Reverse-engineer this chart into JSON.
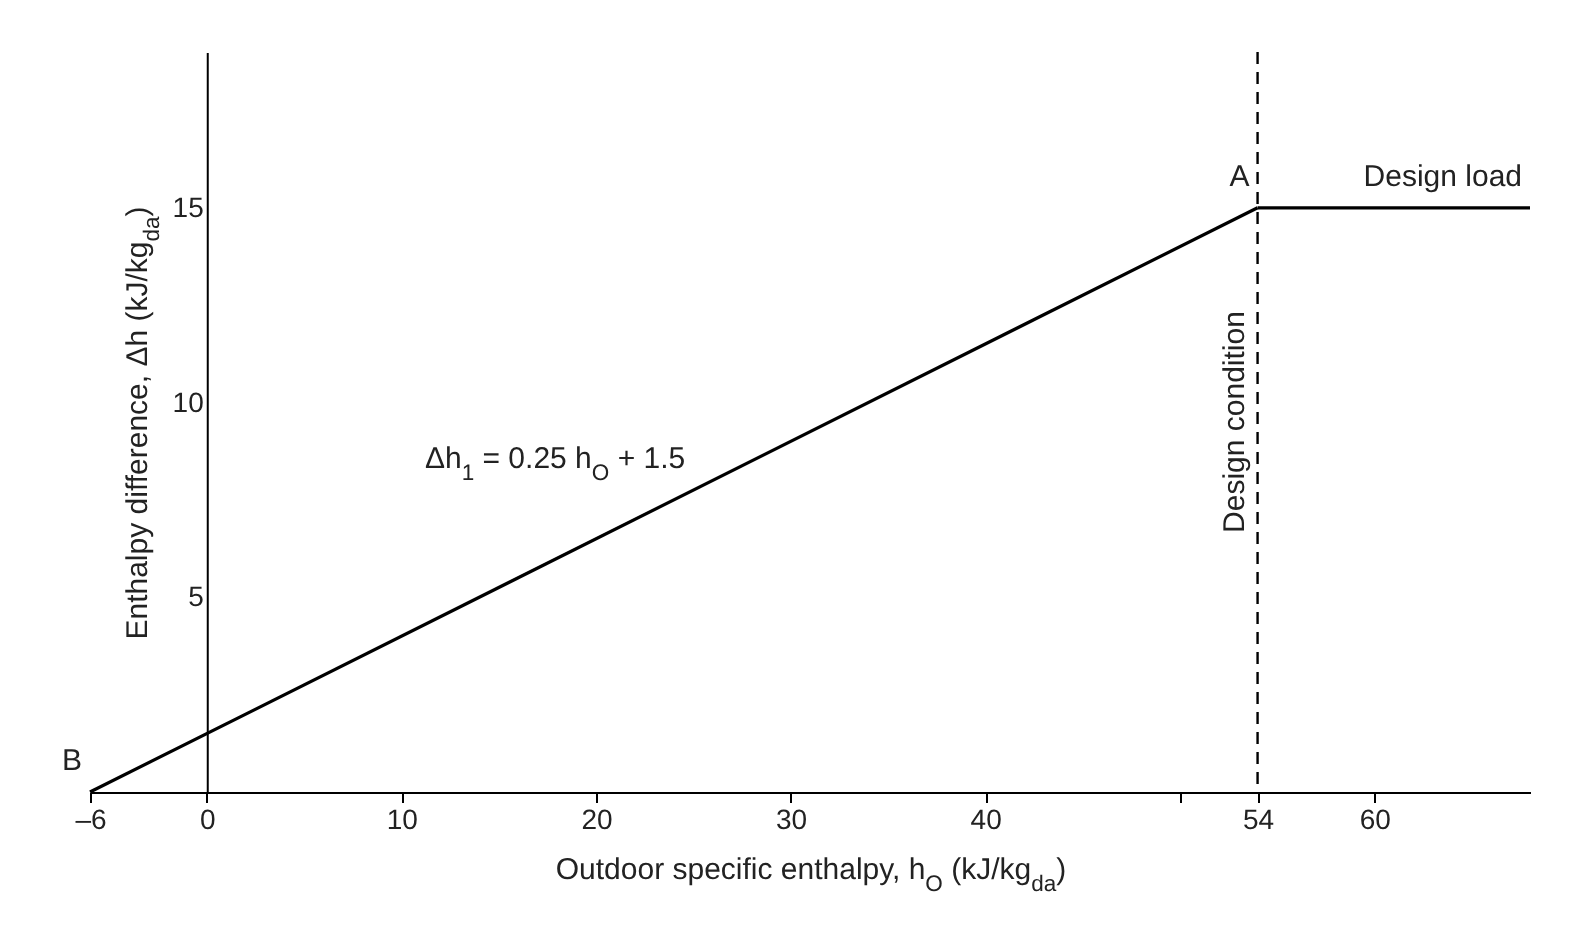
{
  "chart_data": {
    "type": "line",
    "xlabel": "Outdoor specific enthalpy, h$_{O}$ (kJ/kg$_{da}$)",
    "ylabel": "Enthalpy difference, Δh (kJ/kg$_{da}$)",
    "series": [
      {
        "x": [
          -6,
          54
        ],
        "values": [
          0,
          15
        ],
        "color": "#000000"
      },
      {
        "x": [
          54,
          68
        ],
        "values": [
          15,
          15
        ],
        "color": "#000000"
      }
    ],
    "xlim": [
      -6,
      68
    ],
    "xticks": [
      {
        "value": -6,
        "label": "–6"
      },
      0,
      10,
      20,
      30,
      40,
      {
        "value": 50,
        "label": null
      },
      54,
      60
    ],
    "ylim": [
      0,
      19
    ],
    "yticks": [
      5,
      10,
      15
    ],
    "ref_lines": [
      {
        "axis": "x",
        "value": 54,
        "label": "Design condition",
        "line_style": "dashed",
        "color": "#000000"
      }
    ],
    "annotations": [
      {
        "text": "A",
        "x": 54,
        "y": 15
      },
      {
        "text": "B",
        "x": -6,
        "y": 0
      },
      {
        "text": "Design load",
        "x": 68,
        "y": 15
      },
      {
        "text": "Δh$_{1}$ = 0.25 h$_{O}$ + 1.5",
        "x": 25,
        "y": 7.75
      }
    ],
    "grid": false,
    "legend": false,
    "marker": "none",
    "line_style": "solid"
  }
}
